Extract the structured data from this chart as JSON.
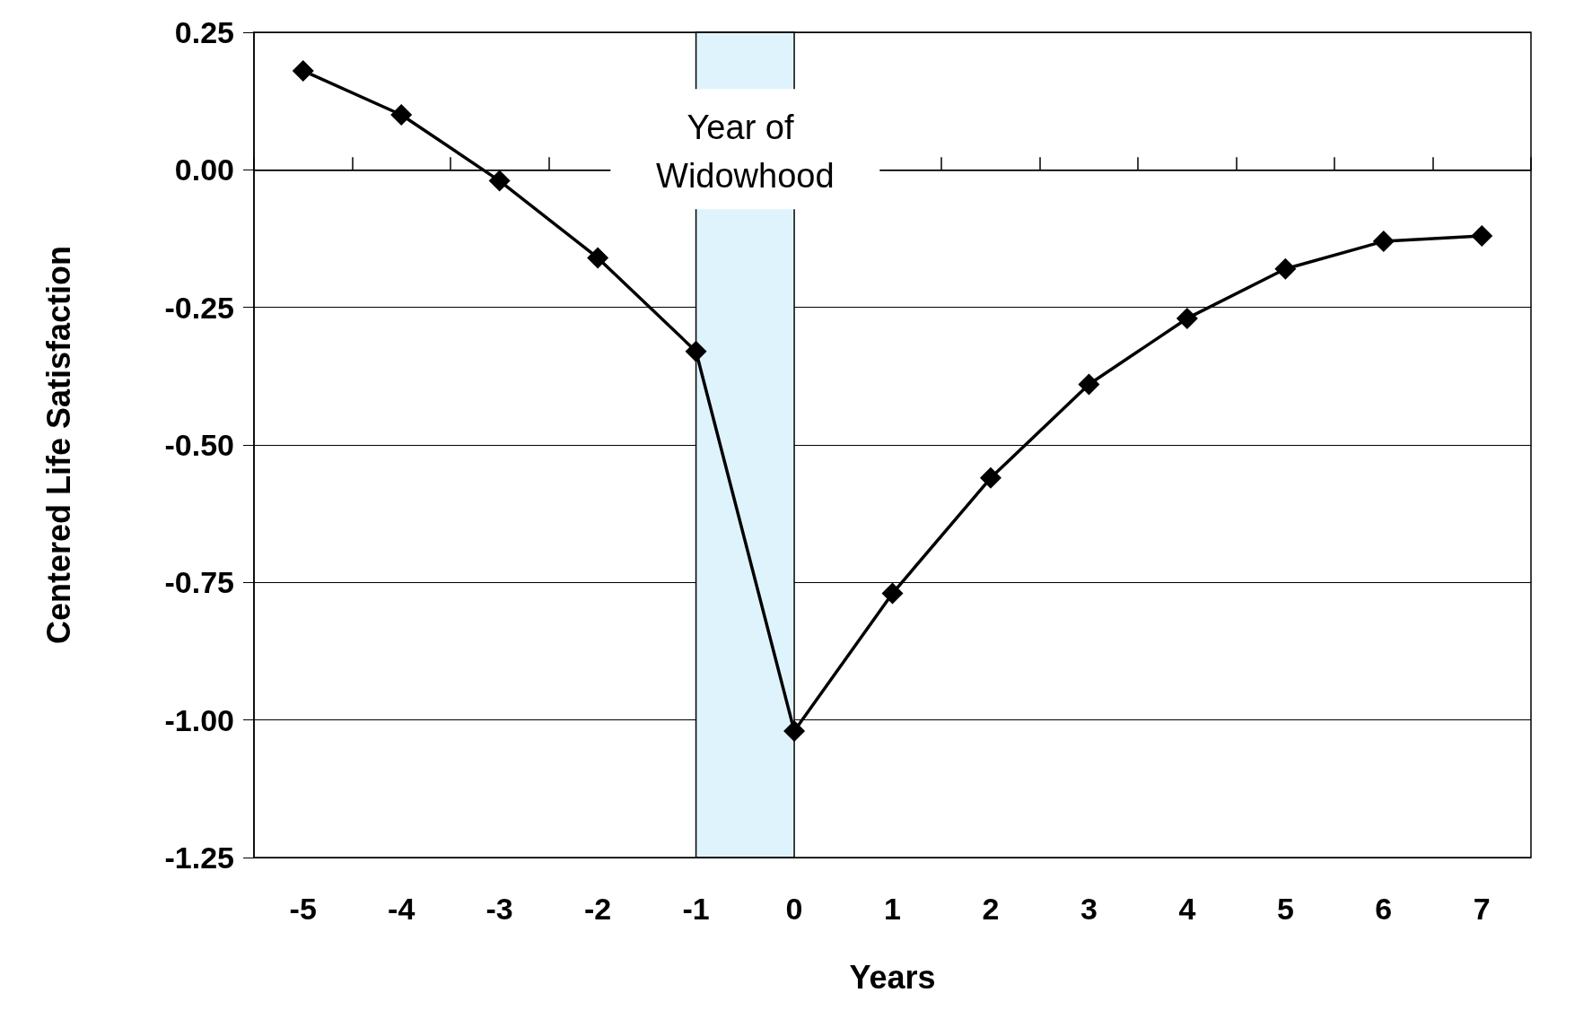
{
  "chart_data": {
    "type": "line",
    "xlabel": "Years",
    "ylabel": "Centered Life Satisfaction",
    "categories": [
      "-5",
      "-4",
      "-3",
      "-2",
      "-1",
      "0",
      "1",
      "2",
      "3",
      "4",
      "5",
      "6",
      "7"
    ],
    "series": [
      {
        "color": "#000000",
        "values": [
          0.18,
          0.1,
          -0.02,
          -0.16,
          -0.33,
          -1.02,
          -0.77,
          -0.56,
          -0.39,
          -0.27,
          -0.18,
          -0.13,
          -0.12
        ]
      }
    ],
    "ylim": [
      -1.25,
      0.25
    ],
    "yticks": [
      {
        "value": -1.25,
        "label": "-1.25"
      },
      {
        "value": -1,
        "label": "-1.00"
      },
      {
        "value": -0.75,
        "label": "-0.75"
      },
      {
        "value": -0.5,
        "label": "-0.50"
      },
      {
        "value": -0.25,
        "label": "-0.25"
      },
      {
        "value": 0,
        "label": "0.00"
      },
      {
        "value": 0.25,
        "label": "0.25"
      }
    ],
    "bands": [
      {
        "axis": "x",
        "from": "-1",
        "to": "0",
        "label": "Year of Widowhood",
        "color": "#dff3fd"
      }
    ],
    "grid": "y",
    "marker": "diamond",
    "line_style": "solid"
  }
}
